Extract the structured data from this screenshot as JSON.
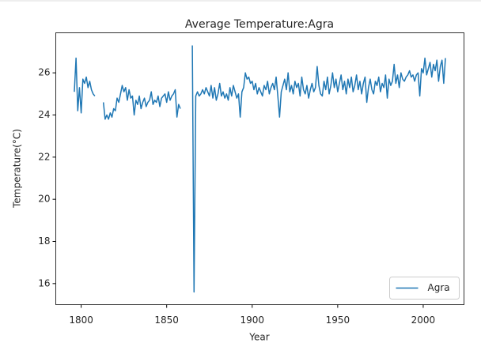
{
  "chart_data": {
    "type": "line",
    "title": "Average Temperature:Agra",
    "xlabel": "Year",
    "ylabel": "Temperature(°C)",
    "x": [
      1796,
      1797,
      1798,
      1799,
      1800,
      1801,
      1802,
      1803,
      1804,
      1805,
      1806,
      1807,
      1808,
      1809,
      1810,
      1811,
      1812,
      1813,
      1814,
      1815,
      1816,
      1817,
      1818,
      1819,
      1820,
      1821,
      1822,
      1823,
      1824,
      1825,
      1826,
      1827,
      1828,
      1829,
      1830,
      1831,
      1832,
      1833,
      1834,
      1835,
      1836,
      1837,
      1838,
      1839,
      1840,
      1841,
      1842,
      1843,
      1844,
      1845,
      1846,
      1847,
      1848,
      1849,
      1850,
      1851,
      1852,
      1853,
      1854,
      1855,
      1856,
      1857,
      1858,
      1859,
      1860,
      1861,
      1862,
      1863,
      1864,
      1865,
      1866,
      1867,
      1868,
      1869,
      1870,
      1871,
      1872,
      1873,
      1874,
      1875,
      1876,
      1877,
      1878,
      1879,
      1880,
      1881,
      1882,
      1883,
      1884,
      1885,
      1886,
      1887,
      1888,
      1889,
      1890,
      1891,
      1892,
      1893,
      1894,
      1895,
      1896,
      1897,
      1898,
      1899,
      1900,
      1901,
      1902,
      1903,
      1904,
      1905,
      1906,
      1907,
      1908,
      1909,
      1910,
      1911,
      1912,
      1913,
      1914,
      1915,
      1916,
      1917,
      1918,
      1919,
      1920,
      1921,
      1922,
      1923,
      1924,
      1925,
      1926,
      1927,
      1928,
      1929,
      1930,
      1931,
      1932,
      1933,
      1934,
      1935,
      1936,
      1937,
      1938,
      1939,
      1940,
      1941,
      1942,
      1943,
      1944,
      1945,
      1946,
      1947,
      1948,
      1949,
      1950,
      1951,
      1952,
      1953,
      1954,
      1955,
      1956,
      1957,
      1958,
      1959,
      1960,
      1961,
      1962,
      1963,
      1964,
      1965,
      1966,
      1967,
      1968,
      1969,
      1970,
      1971,
      1972,
      1973,
      1974,
      1975,
      1976,
      1977,
      1978,
      1979,
      1980,
      1981,
      1982,
      1983,
      1984,
      1985,
      1986,
      1987,
      1988,
      1989,
      1990,
      1991,
      1992,
      1993,
      1994,
      1995,
      1996,
      1997,
      1998,
      1999,
      2000,
      2001,
      2002,
      2003,
      2004,
      2005,
      2006,
      2007,
      2008,
      2009,
      2010,
      2011,
      2012,
      2013
    ],
    "series": [
      {
        "name": "Agra",
        "color": "#1f77b4",
        "values": [
          25.1,
          26.7,
          24.2,
          25.3,
          24.1,
          25.7,
          25.5,
          25.8,
          25.3,
          25.6,
          25.2,
          25.0,
          24.9,
          null,
          null,
          null,
          null,
          24.6,
          23.8,
          24.0,
          23.8,
          24.1,
          23.9,
          24.3,
          24.2,
          24.8,
          24.6,
          25.0,
          25.4,
          25.1,
          25.3,
          24.7,
          25.2,
          24.8,
          24.9,
          24.0,
          24.7,
          24.5,
          24.9,
          24.3,
          24.6,
          24.8,
          24.4,
          24.6,
          24.7,
          25.1,
          24.5,
          24.7,
          24.6,
          24.9,
          24.4,
          24.8,
          24.9,
          25.0,
          24.6,
          25.1,
          24.7,
          24.9,
          25.0,
          25.2,
          23.9,
          24.5,
          24.3,
          null,
          null,
          null,
          null,
          null,
          null,
          27.3,
          15.6,
          24.9,
          25.1,
          24.9,
          25.0,
          25.2,
          25.0,
          25.3,
          25.1,
          24.9,
          25.4,
          24.8,
          25.3,
          24.7,
          25.0,
          25.5,
          24.9,
          25.1,
          24.8,
          25.0,
          24.7,
          25.3,
          24.9,
          25.4,
          25.1,
          24.8,
          25.0,
          23.9,
          25.1,
          25.3,
          26.0,
          25.7,
          25.8,
          25.5,
          25.6,
          25.2,
          25.5,
          25.0,
          25.3,
          25.1,
          24.9,
          25.4,
          25.2,
          25.6,
          25.0,
          25.3,
          25.5,
          25.2,
          25.8,
          24.9,
          23.9,
          25.1,
          25.4,
          25.7,
          25.2,
          26.0,
          25.1,
          25.4,
          25.0,
          25.6,
          25.3,
          25.5,
          24.9,
          25.8,
          25.2,
          25.0,
          25.4,
          24.8,
          25.2,
          25.5,
          25.1,
          25.3,
          26.3,
          25.4,
          25.0,
          24.9,
          25.6,
          25.2,
          25.8,
          25.0,
          25.4,
          26.0,
          25.3,
          25.7,
          25.1,
          25.5,
          25.9,
          25.2,
          25.6,
          25.0,
          25.7,
          25.3,
          25.8,
          25.1,
          25.4,
          25.9,
          25.2,
          25.6,
          25.0,
          25.5,
          25.8,
          24.6,
          25.3,
          25.7,
          25.2,
          25.0,
          25.6,
          25.4,
          25.8,
          25.1,
          25.5,
          25.3,
          25.9,
          24.8,
          25.7,
          25.4,
          25.6,
          26.4,
          25.5,
          25.9,
          25.3,
          26.0,
          25.7,
          25.6,
          25.8,
          25.9,
          26.1,
          25.8,
          25.9,
          25.6,
          25.9,
          26.0,
          24.9,
          26.2,
          26.0,
          26.7,
          25.9,
          26.2,
          26.5,
          25.8,
          26.4,
          26.1,
          26.6,
          25.6,
          26.3,
          26.6,
          25.5,
          26.7
        ]
      }
    ],
    "xlim": [
      1785.15,
      2023.85
    ],
    "xticks": [
      1800,
      1850,
      1900,
      1950,
      2000
    ],
    "ylim": [
      15.0,
      27.9
    ],
    "yticks": [
      16,
      18,
      20,
      22,
      24,
      26
    ],
    "grid": false,
    "legend": "lower right"
  }
}
